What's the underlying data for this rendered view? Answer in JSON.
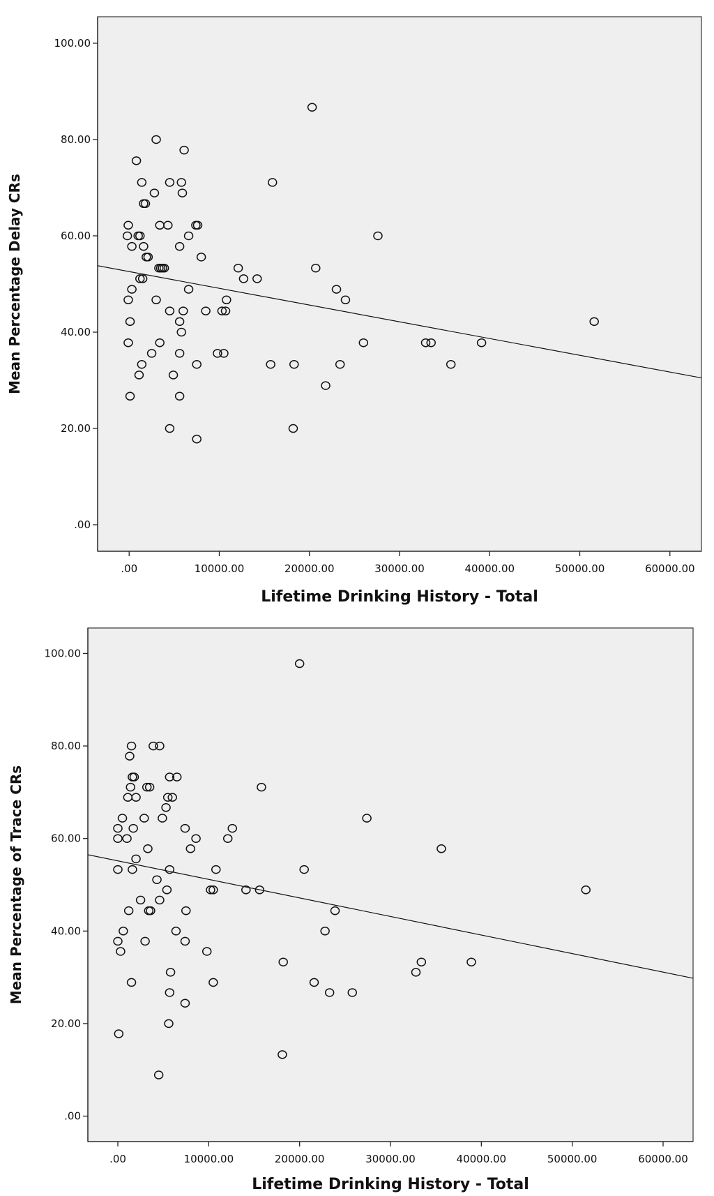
{
  "chart_data": [
    {
      "type": "scatter",
      "xlabel": "Lifetime Drinking History -  Total",
      "ylabel": "Mean Percentage Delay CRs",
      "xlim": [
        -3500,
        63500
      ],
      "ylim": [
        -5.5,
        105.5
      ],
      "x_ticks": [
        0,
        10000,
        20000,
        30000,
        40000,
        50000,
        60000
      ],
      "x_tick_labels": [
        ".00",
        "10000.00",
        "20000.00",
        "30000.00",
        "40000.00",
        "50000.00",
        "60000.00"
      ],
      "y_ticks": [
        0,
        20,
        40,
        60,
        80,
        100
      ],
      "y_tick_labels": [
        ".00",
        "20.00",
        "40.00",
        "60.00",
        "80.00",
        "100.00"
      ],
      "grid": false,
      "marker": "open-circle",
      "fit_line": {
        "x": [
          -3500,
          63500
        ],
        "y": [
          53.8,
          30.5
        ]
      },
      "points": [
        [
          20300,
          86.7
        ],
        [
          3000,
          80.0
        ],
        [
          6100,
          77.8
        ],
        [
          800,
          75.6
        ],
        [
          1400,
          71.1
        ],
        [
          4500,
          71.1
        ],
        [
          5800,
          71.1
        ],
        [
          15900,
          71.1
        ],
        [
          2800,
          68.9
        ],
        [
          5900,
          68.9
        ],
        [
          1600,
          66.7
        ],
        [
          1800,
          66.7
        ],
        [
          -100,
          62.2
        ],
        [
          3400,
          62.2
        ],
        [
          4300,
          62.2
        ],
        [
          7400,
          62.2
        ],
        [
          7600,
          62.2
        ],
        [
          -200,
          60.0
        ],
        [
          1000,
          60.0
        ],
        [
          1200,
          60.0
        ],
        [
          6600,
          60.0
        ],
        [
          27600,
          60.0
        ],
        [
          300,
          57.8
        ],
        [
          1600,
          57.8
        ],
        [
          5600,
          57.8
        ],
        [
          1900,
          55.6
        ],
        [
          2100,
          55.6
        ],
        [
          8000,
          55.6
        ],
        [
          3300,
          53.3
        ],
        [
          3500,
          53.3
        ],
        [
          3700,
          53.3
        ],
        [
          3900,
          53.3
        ],
        [
          12100,
          53.3
        ],
        [
          20700,
          53.3
        ],
        [
          1200,
          51.1
        ],
        [
          1500,
          51.1
        ],
        [
          12700,
          51.1
        ],
        [
          14200,
          51.1
        ],
        [
          300,
          48.9
        ],
        [
          6600,
          48.9
        ],
        [
          23000,
          48.9
        ],
        [
          -100,
          46.7
        ],
        [
          3000,
          46.7
        ],
        [
          10800,
          46.7
        ],
        [
          24000,
          46.7
        ],
        [
          4500,
          44.4
        ],
        [
          6000,
          44.4
        ],
        [
          8500,
          44.4
        ],
        [
          10300,
          44.4
        ],
        [
          10700,
          44.4
        ],
        [
          100,
          42.2
        ],
        [
          5600,
          42.2
        ],
        [
          51600,
          42.2
        ],
        [
          5800,
          40.0
        ],
        [
          -100,
          37.8
        ],
        [
          3400,
          37.8
        ],
        [
          26000,
          37.8
        ],
        [
          32900,
          37.8
        ],
        [
          33500,
          37.8
        ],
        [
          39100,
          37.8
        ],
        [
          2500,
          35.6
        ],
        [
          5600,
          35.6
        ],
        [
          9800,
          35.6
        ],
        [
          10500,
          35.6
        ],
        [
          1400,
          33.3
        ],
        [
          7500,
          33.3
        ],
        [
          15700,
          33.3
        ],
        [
          18300,
          33.3
        ],
        [
          23400,
          33.3
        ],
        [
          35700,
          33.3
        ],
        [
          1100,
          31.1
        ],
        [
          4900,
          31.1
        ],
        [
          21800,
          28.9
        ],
        [
          100,
          26.7
        ],
        [
          5600,
          26.7
        ],
        [
          4500,
          20.0
        ],
        [
          18200,
          20.0
        ],
        [
          7500,
          17.8
        ]
      ]
    },
    {
      "type": "scatter",
      "xlabel": "Lifetime Drinking History - Total",
      "ylabel": "Mean Percentage of Trace CRs",
      "xlim": [
        -3300,
        63300
      ],
      "ylim": [
        -5.5,
        105.5
      ],
      "x_ticks": [
        0,
        10000,
        20000,
        30000,
        40000,
        50000,
        60000
      ],
      "x_tick_labels": [
        ".00",
        "10000.00",
        "20000.00",
        "30000.00",
        "40000.00",
        "50000.00",
        "60000.00"
      ],
      "y_ticks": [
        0,
        20,
        40,
        60,
        80,
        100
      ],
      "y_tick_labels": [
        ".00",
        "20.00",
        "40.00",
        "60.00",
        "80.00",
        "100.00"
      ],
      "grid": false,
      "marker": "open-circle",
      "fit_line": {
        "x": [
          -3300,
          63300
        ],
        "y": [
          56.5,
          29.8
        ]
      },
      "points": [
        [
          20000,
          97.8
        ],
        [
          1500,
          80.0
        ],
        [
          3900,
          80.0
        ],
        [
          4600,
          80.0
        ],
        [
          1300,
          77.8
        ],
        [
          1600,
          73.3
        ],
        [
          1800,
          73.3
        ],
        [
          5700,
          73.3
        ],
        [
          6500,
          73.3
        ],
        [
          1400,
          71.1
        ],
        [
          3200,
          71.1
        ],
        [
          3500,
          71.1
        ],
        [
          15800,
          71.1
        ],
        [
          1100,
          68.9
        ],
        [
          2000,
          68.9
        ],
        [
          5500,
          68.9
        ],
        [
          6000,
          68.9
        ],
        [
          5300,
          66.7
        ],
        [
          500,
          64.4
        ],
        [
          2900,
          64.4
        ],
        [
          4900,
          64.4
        ],
        [
          27400,
          64.4
        ],
        [
          0,
          62.2
        ],
        [
          1700,
          62.2
        ],
        [
          7400,
          62.2
        ],
        [
          12600,
          62.2
        ],
        [
          0,
          60.0
        ],
        [
          1000,
          60.0
        ],
        [
          8600,
          60.0
        ],
        [
          12100,
          60.0
        ],
        [
          3300,
          57.8
        ],
        [
          8000,
          57.8
        ],
        [
          35600,
          57.8
        ],
        [
          2000,
          55.6
        ],
        [
          0,
          53.3
        ],
        [
          1600,
          53.3
        ],
        [
          5700,
          53.3
        ],
        [
          10800,
          53.3
        ],
        [
          20500,
          53.3
        ],
        [
          4300,
          51.1
        ],
        [
          5400,
          48.9
        ],
        [
          10200,
          48.9
        ],
        [
          10500,
          48.9
        ],
        [
          14100,
          48.9
        ],
        [
          15600,
          48.9
        ],
        [
          51500,
          48.9
        ],
        [
          2500,
          46.7
        ],
        [
          4600,
          46.7
        ],
        [
          1200,
          44.4
        ],
        [
          3400,
          44.4
        ],
        [
          3600,
          44.4
        ],
        [
          7500,
          44.4
        ],
        [
          23900,
          44.4
        ],
        [
          600,
          40.0
        ],
        [
          6400,
          40.0
        ],
        [
          22800,
          40.0
        ],
        [
          0,
          37.8
        ],
        [
          3000,
          37.8
        ],
        [
          7400,
          37.8
        ],
        [
          300,
          35.6
        ],
        [
          9800,
          35.6
        ],
        [
          18200,
          33.3
        ],
        [
          33400,
          33.3
        ],
        [
          38900,
          33.3
        ],
        [
          5800,
          31.1
        ],
        [
          32800,
          31.1
        ],
        [
          1500,
          28.9
        ],
        [
          10500,
          28.9
        ],
        [
          21600,
          28.9
        ],
        [
          5700,
          26.7
        ],
        [
          23300,
          26.7
        ],
        [
          25800,
          26.7
        ],
        [
          7400,
          24.4
        ],
        [
          5600,
          20.0
        ],
        [
          100,
          17.8
        ],
        [
          18100,
          13.3
        ],
        [
          4500,
          8.9
        ]
      ]
    }
  ]
}
